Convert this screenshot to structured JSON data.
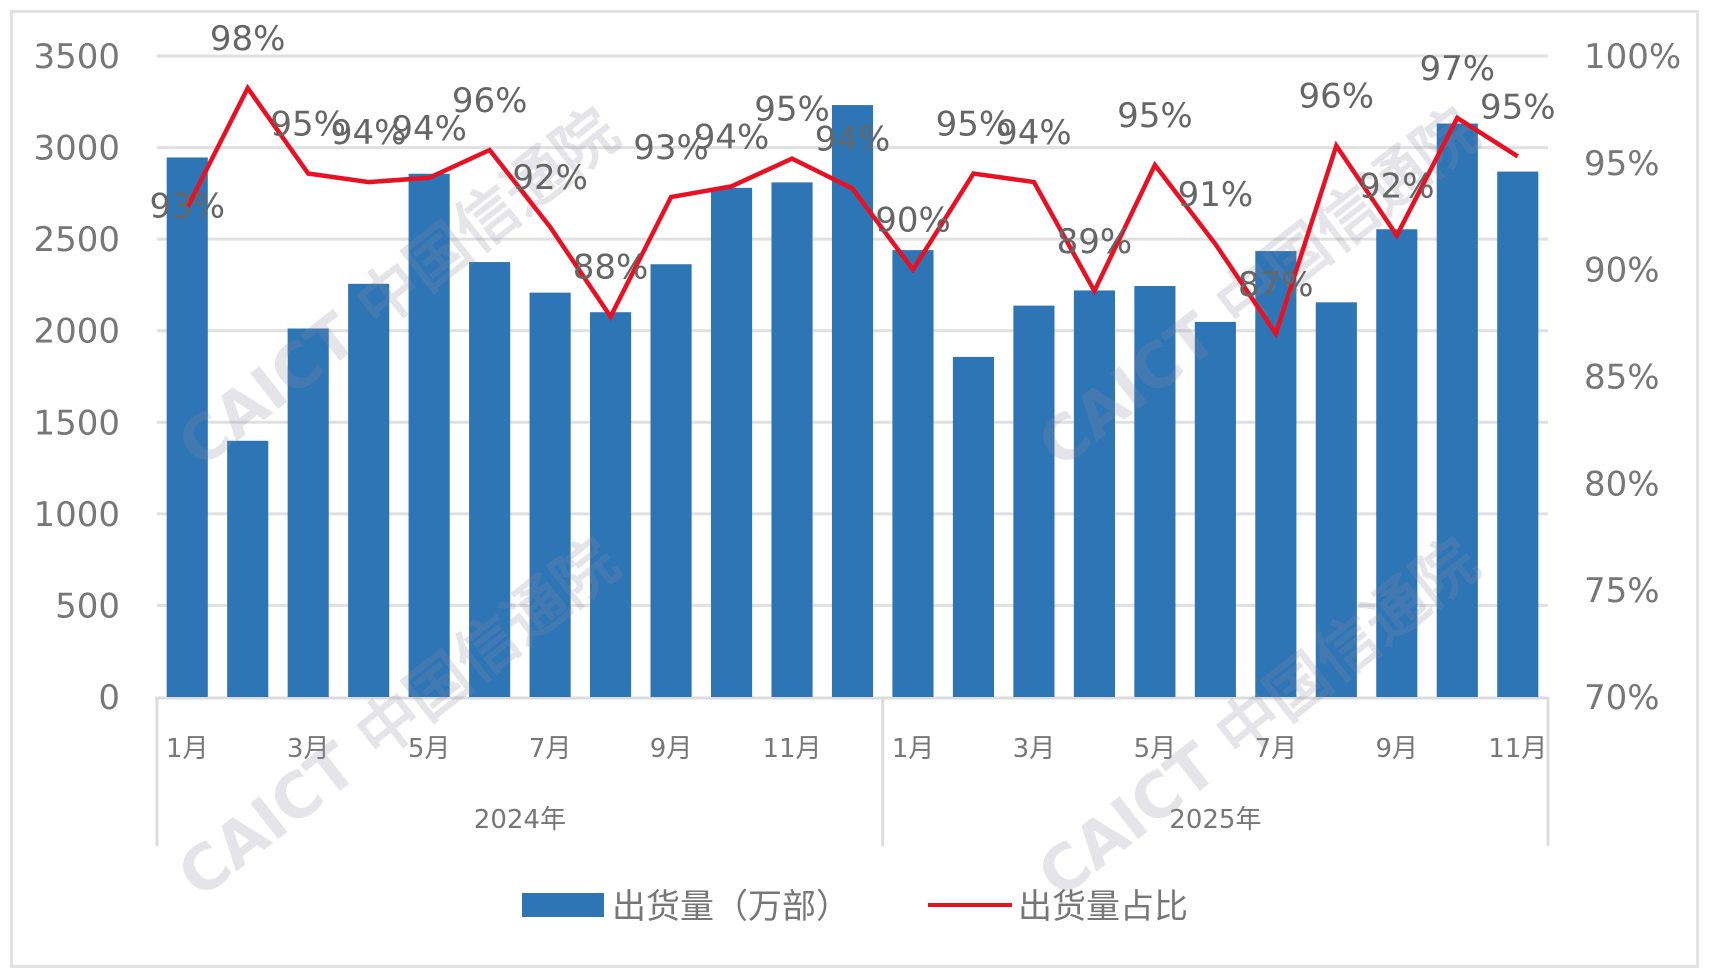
{
  "chart_data": {
    "type": "bar+line",
    "title": "",
    "categories": [
      "1月",
      "2月",
      "3月",
      "4月",
      "5月",
      "6月",
      "7月",
      "8月",
      "9月",
      "10月",
      "11月",
      "12月",
      "1月",
      "2月",
      "3月",
      "4月",
      "5月",
      "6月",
      "7月",
      "8月",
      "9月",
      "10月",
      "11月"
    ],
    "visible_x_ticks": [
      "1月",
      "3月",
      "5月",
      "7月",
      "9月",
      "11月",
      "1月",
      "3月",
      "5月",
      "7月",
      "9月",
      "11月"
    ],
    "groups": [
      {
        "label": "2024年",
        "start": 0,
        "count": 12
      },
      {
        "label": "2025年",
        "start": 12,
        "count": 11
      }
    ],
    "series": [
      {
        "name": "出货量（万部）",
        "type": "bar",
        "axis": "left",
        "color": "#2E75B6",
        "values": [
          2946,
          1399,
          2012,
          2256,
          2857,
          2375,
          2208,
          2101,
          2363,
          2780,
          2810,
          3232,
          2440,
          1857,
          2137,
          2220,
          2244,
          2048,
          2435,
          2155,
          2554,
          3131,
          2869
        ]
      },
      {
        "name": "出货量占比",
        "type": "line",
        "axis": "right",
        "color": "#E81123",
        "values": [
          92.9,
          98.5,
          94.5,
          94.1,
          94.3,
          95.6,
          92.0,
          87.8,
          93.4,
          93.9,
          95.2,
          93.8,
          90.0,
          94.5,
          94.1,
          89.0,
          94.9,
          91.2,
          87.0,
          95.8,
          91.6,
          97.1,
          95.3
        ],
        "data_labels": [
          "93%",
          "98%",
          "95%",
          "94%",
          "94%",
          "96%",
          "92%",
          "88%",
          "93%",
          "94%",
          "95%",
          "94%",
          "90%",
          "95%",
          "94%",
          "89%",
          "95%",
          "91%",
          "87%",
          "96%",
          "92%",
          "97%",
          "95%"
        ]
      }
    ],
    "ylabel": "",
    "y2label": "",
    "ylim": [
      0,
      3500
    ],
    "yticks": [
      "0",
      "500",
      "1000",
      "1500",
      "2000",
      "2500",
      "3000",
      "3500"
    ],
    "y2lim": [
      70,
      100
    ],
    "y2ticks": [
      "70%",
      "75%",
      "80%",
      "85%",
      "90%",
      "95%",
      "100%"
    ],
    "grid": true,
    "legend_position": "bottom",
    "watermark": "CAICT 中国信通院"
  },
  "legend": {
    "bar_label": "出货量（万部）",
    "line_label": "出货量占比"
  }
}
